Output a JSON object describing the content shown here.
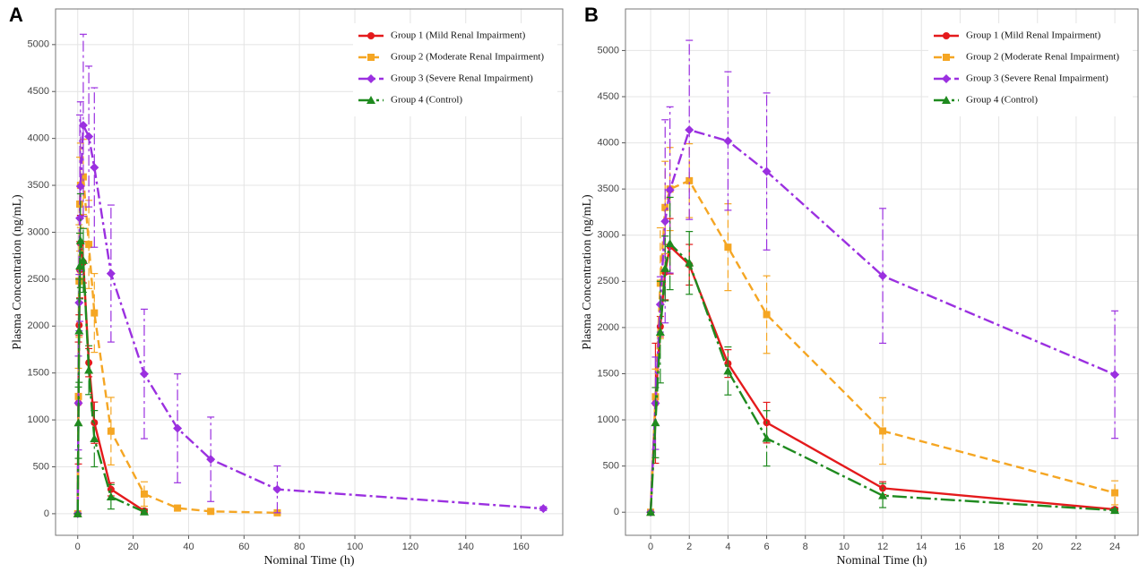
{
  "chart_data": [
    {
      "type": "line",
      "panel_label": "A",
      "x_label": "Nominal Time (h)",
      "y_label": "Plasma Concentration (ng/mL)",
      "x": [
        0,
        0.25,
        0.5,
        0.75,
        1,
        2,
        4,
        6,
        12,
        24,
        36,
        48,
        72,
        168
      ],
      "xlim": [
        -8,
        175
      ],
      "xticks": [
        0,
        20,
        40,
        60,
        80,
        100,
        120,
        140,
        160
      ],
      "ylim": [
        -230,
        5380
      ],
      "yticks": [
        0,
        500,
        1000,
        1500,
        2000,
        2500,
        3000,
        3500,
        4000,
        4500,
        5000
      ],
      "grid": true,
      "legend": "top-right",
      "series": [
        {
          "name": "Group 1 (Mild Renal Impairment)",
          "color": "#e41a1c",
          "dash": "solid",
          "marker": "circle",
          "values": [
            0,
            1180,
            2010,
            2600,
            2880,
            2680,
            1610,
            970,
            260,
            30,
            null,
            null,
            null,
            null
          ],
          "errors": [
            0,
            650,
            110,
            300,
            300,
            220,
            150,
            220,
            70,
            20,
            null,
            null,
            null,
            null
          ]
        },
        {
          "name": "Group 2 (Moderate Renal Impairment)",
          "color": "#f5a623",
          "dash": "dashed",
          "marker": "square",
          "values": [
            0,
            1250,
            2480,
            3300,
            3500,
            3590,
            2870,
            2140,
            880,
            210,
            60,
            25,
            10,
            null
          ],
          "errors": [
            0,
            300,
            600,
            500,
            450,
            400,
            470,
            420,
            360,
            130,
            30,
            15,
            10,
            null
          ]
        },
        {
          "name": "Group 3 (Severe Renal Impairment)",
          "color": "#9b30e0",
          "dash": "dashdot",
          "marker": "diamond",
          "values": [
            0,
            1180,
            2250,
            3150,
            3490,
            4140,
            4020,
            3690,
            2560,
            1490,
            910,
            580,
            260,
            55
          ],
          "errors": [
            0,
            500,
            300,
            1100,
            900,
            970,
            750,
            850,
            730,
            690,
            580,
            450,
            250,
            20
          ]
        },
        {
          "name": "Group 4 (Control)",
          "color": "#1f8a1f",
          "dash": "longdashdot",
          "marker": "triangle",
          "values": [
            0,
            970,
            1950,
            2640,
            2910,
            2700,
            1530,
            800,
            180,
            20,
            null,
            null,
            null,
            null
          ],
          "errors": [
            0,
            380,
            550,
            350,
            500,
            340,
            260,
            300,
            130,
            15,
            null,
            null,
            null,
            null
          ]
        }
      ]
    },
    {
      "type": "line",
      "panel_label": "B",
      "x_label": "Nominal Time (h)",
      "y_label": "Plasma Concentration (ng/mL)",
      "x": [
        0,
        0.25,
        0.5,
        0.75,
        1,
        2,
        4,
        6,
        12,
        24
      ],
      "xlim": [
        -1.3,
        25.2
      ],
      "xticks": [
        0,
        2,
        4,
        6,
        8,
        10,
        12,
        14,
        16,
        18,
        20,
        22,
        24
      ],
      "ylim": [
        -250,
        5450
      ],
      "yticks": [
        0,
        500,
        1000,
        1500,
        2000,
        2500,
        3000,
        3500,
        4000,
        4500,
        5000
      ],
      "grid": true,
      "legend": "top-right",
      "series": [
        {
          "name": "Group 1 (Mild Renal Impairment)",
          "color": "#e41a1c",
          "dash": "solid",
          "marker": "circle",
          "values": [
            0,
            1180,
            2010,
            2600,
            2880,
            2680,
            1610,
            970,
            260,
            30
          ],
          "errors": [
            0,
            650,
            110,
            300,
            300,
            220,
            150,
            220,
            70,
            20
          ]
        },
        {
          "name": "Group 2 (Moderate Renal Impairment)",
          "color": "#f5a623",
          "dash": "dashed",
          "marker": "square",
          "values": [
            0,
            1250,
            2480,
            3300,
            3500,
            3590,
            2870,
            2140,
            880,
            210
          ],
          "errors": [
            0,
            300,
            600,
            500,
            450,
            400,
            470,
            420,
            360,
            130
          ]
        },
        {
          "name": "Group 3 (Severe Renal Impairment)",
          "color": "#9b30e0",
          "dash": "dashdot",
          "marker": "diamond",
          "values": [
            0,
            1180,
            2250,
            3150,
            3490,
            4140,
            4020,
            3690,
            2560,
            1490
          ],
          "errors": [
            0,
            500,
            300,
            1100,
            900,
            970,
            750,
            850,
            730,
            690
          ]
        },
        {
          "name": "Group 4 (Control)",
          "color": "#1f8a1f",
          "dash": "longdashdot",
          "marker": "triangle",
          "values": [
            0,
            970,
            1950,
            2640,
            2910,
            2700,
            1530,
            800,
            180,
            20
          ],
          "errors": [
            0,
            380,
            550,
            350,
            500,
            340,
            260,
            300,
            130,
            15
          ]
        }
      ]
    }
  ]
}
